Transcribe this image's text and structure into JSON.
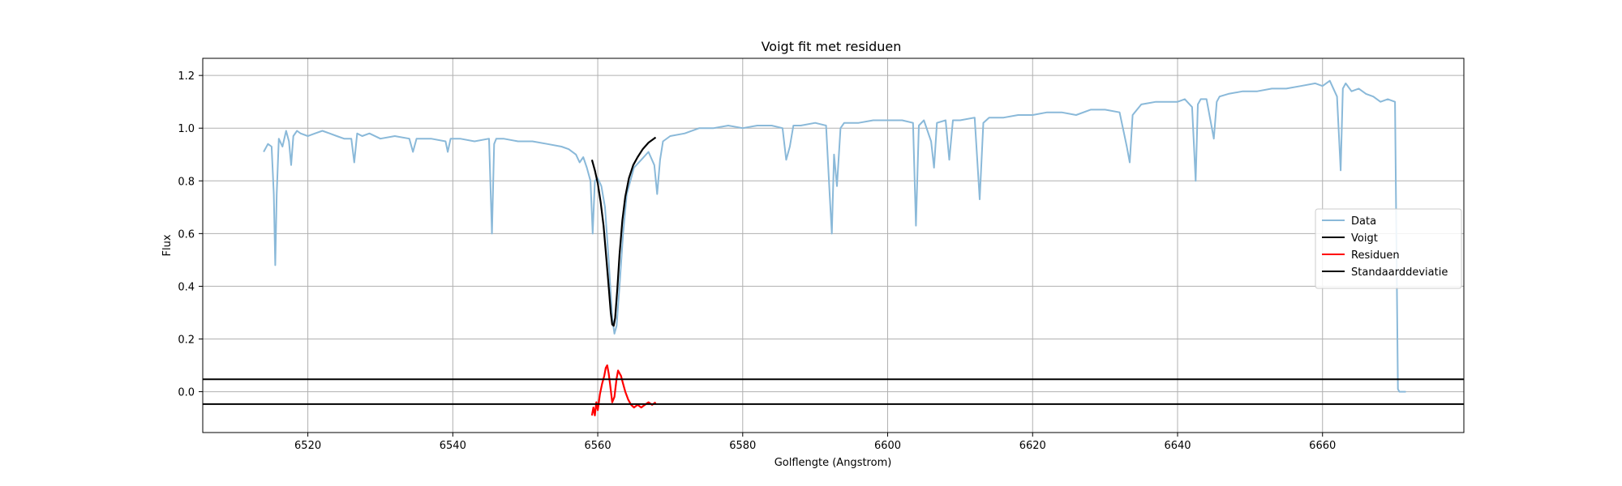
{
  "chart_data": {
    "type": "line",
    "title": "Voigt fit met residuen",
    "xlabel": "Golflengte (Angstrom)",
    "ylabel": "Flux",
    "xlim": [
      6505.5,
      6679.5
    ],
    "ylim": [
      -0.155,
      1.265
    ],
    "xticks": [
      6520,
      6540,
      6560,
      6580,
      6600,
      6620,
      6640,
      6660
    ],
    "yticks": [
      0.0,
      0.2,
      0.4,
      0.6,
      0.8,
      1.0,
      1.2
    ],
    "grid": true,
    "legend_position": "center-right",
    "legend": [
      {
        "label": "Data",
        "color": "#8ab9d9"
      },
      {
        "label": "Voigt",
        "color": "#000000"
      },
      {
        "label": "Residuen",
        "color": "#ff0000"
      },
      {
        "label": "Standaarddeviatie",
        "color": "#000000"
      }
    ],
    "series": [
      {
        "name": "Data",
        "color": "#8ab9d9",
        "x": [
          6513.9,
          6514.5,
          6515.0,
          6515.3,
          6515.5,
          6515.7,
          6516.0,
          6516.5,
          6517.0,
          6517.4,
          6517.7,
          6518.0,
          6518.5,
          6519.0,
          6520.0,
          6521.0,
          6522.0,
          6523.0,
          6524.0,
          6525.0,
          6526.0,
          6526.4,
          6526.8,
          6527.5,
          6528.5,
          6530.0,
          6532.0,
          6534.0,
          6534.5,
          6535.0,
          6537.0,
          6539.0,
          6539.3,
          6539.7,
          6541.0,
          6543.0,
          6545.0,
          6545.4,
          6545.7,
          6546.0,
          6547.0,
          6549.0,
          6551.0,
          6553.0,
          6555.0,
          6556.0,
          6557.0,
          6557.5,
          6558.0,
          6558.5,
          6559.0,
          6559.3,
          6559.6,
          6560.0,
          6560.5,
          6561.0,
          6561.5,
          6562.0,
          6562.3,
          6562.6,
          6563.0,
          6563.5,
          6564.0,
          6564.5,
          6565.0,
          6566.0,
          6567.0,
          6567.8,
          6568.2,
          6568.6,
          6569.0,
          6570.0,
          6572.0,
          6574.0,
          6576.0,
          6578.0,
          6580.0,
          6582.0,
          6584.0,
          6585.5,
          6586.0,
          6586.5,
          6587.0,
          6588.0,
          6590.0,
          6591.5,
          6592.0,
          6592.3,
          6592.6,
          6593.0,
          6593.5,
          6594.0,
          6596.0,
          6598.0,
          6600.0,
          6602.0,
          6603.5,
          6603.9,
          6604.3,
          6605.0,
          6606.0,
          6606.4,
          6606.8,
          6608.0,
          6608.5,
          6609.0,
          6610.0,
          6612.0,
          6612.7,
          6613.2,
          6614.0,
          6616.0,
          6618.0,
          6620.0,
          6622.0,
          6624.0,
          6626.0,
          6628.0,
          6630.0,
          6632.0,
          6633.0,
          6633.4,
          6633.8,
          6635.0,
          6637.0,
          6639.0,
          6640.0,
          6641.0,
          6642.0,
          6642.5,
          6642.8,
          6643.2,
          6644.0,
          6645.0,
          6645.4,
          6645.8,
          6647.0,
          6649.0,
          6651.0,
          6653.0,
          6655.0,
          6657.0,
          6659.0,
          6660.0,
          6661.0,
          6662.0,
          6662.5,
          6662.8,
          6663.2,
          6664.0,
          6665.0,
          6666.0,
          6667.0,
          6668.0,
          6669.0,
          6670.0,
          6670.4,
          6670.6,
          6671.0,
          6671.5
        ],
        "y": [
          0.91,
          0.94,
          0.93,
          0.75,
          0.48,
          0.75,
          0.96,
          0.93,
          0.99,
          0.95,
          0.86,
          0.97,
          0.99,
          0.98,
          0.97,
          0.98,
          0.99,
          0.98,
          0.97,
          0.96,
          0.96,
          0.87,
          0.98,
          0.97,
          0.98,
          0.96,
          0.97,
          0.96,
          0.91,
          0.96,
          0.96,
          0.95,
          0.91,
          0.96,
          0.96,
          0.95,
          0.96,
          0.6,
          0.94,
          0.96,
          0.96,
          0.95,
          0.95,
          0.94,
          0.93,
          0.92,
          0.9,
          0.87,
          0.89,
          0.85,
          0.8,
          0.6,
          0.8,
          0.81,
          0.78,
          0.7,
          0.5,
          0.28,
          0.22,
          0.25,
          0.4,
          0.6,
          0.75,
          0.8,
          0.85,
          0.88,
          0.91,
          0.86,
          0.75,
          0.88,
          0.95,
          0.97,
          0.98,
          1.0,
          1.0,
          1.01,
          1.0,
          1.01,
          1.01,
          1.0,
          0.88,
          0.93,
          1.01,
          1.01,
          1.02,
          1.01,
          0.75,
          0.6,
          0.9,
          0.78,
          1.0,
          1.02,
          1.02,
          1.03,
          1.03,
          1.03,
          1.02,
          0.63,
          1.01,
          1.03,
          0.95,
          0.85,
          1.02,
          1.03,
          0.88,
          1.03,
          1.03,
          1.04,
          0.73,
          1.02,
          1.04,
          1.04,
          1.05,
          1.05,
          1.06,
          1.06,
          1.05,
          1.07,
          1.07,
          1.06,
          0.93,
          0.87,
          1.05,
          1.09,
          1.1,
          1.1,
          1.1,
          1.11,
          1.08,
          0.8,
          1.09,
          1.11,
          1.11,
          0.96,
          1.1,
          1.12,
          1.13,
          1.14,
          1.14,
          1.15,
          1.15,
          1.16,
          1.17,
          1.16,
          1.18,
          1.12,
          0.84,
          1.15,
          1.17,
          1.14,
          1.15,
          1.13,
          1.12,
          1.1,
          1.11,
          1.1,
          0.01,
          0.0,
          0.0,
          0.0
        ]
      },
      {
        "name": "Voigt",
        "color": "#000000",
        "x": [
          6559.2,
          6559.6,
          6560.0,
          6560.4,
          6560.8,
          6561.2,
          6561.5,
          6561.8,
          6562.0,
          6562.2,
          6562.4,
          6562.7,
          6563.0,
          6563.4,
          6563.8,
          6564.3,
          6564.9,
          6565.5,
          6566.2,
          6567.0,
          6568.0
        ],
        "y": [
          0.88,
          0.84,
          0.79,
          0.72,
          0.63,
          0.5,
          0.4,
          0.3,
          0.255,
          0.25,
          0.28,
          0.39,
          0.52,
          0.65,
          0.74,
          0.81,
          0.86,
          0.89,
          0.92,
          0.945,
          0.965
        ]
      },
      {
        "name": "Residuen",
        "color": "#ff0000",
        "x": [
          6559.2,
          6559.4,
          6559.6,
          6559.8,
          6560.0,
          6560.3,
          6560.6,
          6560.9,
          6561.1,
          6561.3,
          6561.5,
          6561.7,
          6562.0,
          6562.3,
          6562.6,
          6562.8,
          6563.0,
          6563.2,
          6563.5,
          6563.8,
          6564.2,
          6564.6,
          6565.0,
          6565.5,
          6566.0,
          6566.5,
          6567.0,
          6567.5,
          6568.0
        ],
        "y": [
          -0.09,
          -0.06,
          -0.09,
          -0.04,
          -0.07,
          -0.01,
          0.03,
          0.06,
          0.09,
          0.1,
          0.07,
          0.03,
          -0.04,
          -0.02,
          0.05,
          0.08,
          0.07,
          0.06,
          0.03,
          0.0,
          -0.03,
          -0.05,
          -0.06,
          -0.05,
          -0.06,
          -0.05,
          -0.04,
          -0.05,
          -0.04
        ]
      },
      {
        "name": "Standaarddeviatie",
        "color": "#000000",
        "hlines": [
          0.047,
          -0.047
        ]
      }
    ]
  }
}
